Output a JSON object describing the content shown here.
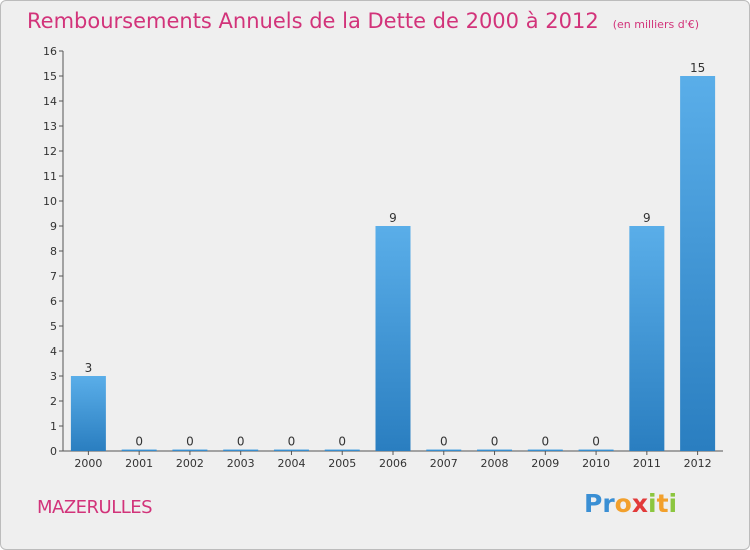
{
  "header": {
    "title": "Remboursements Annuels de la Dette de 2000 à 2012",
    "unit": "(en milliers d'€)"
  },
  "footer": {
    "commune": "MAZERULLES",
    "logo_text": "Proxiti"
  },
  "colors": {
    "accent": "#d2337a",
    "bar_light": "#5aaee9",
    "bar_dark": "#2a7ec0"
  },
  "chart_data": {
    "type": "bar",
    "title": "Remboursements Annuels de la Dette de 2000 à 2012",
    "subtitle": "(en milliers d'€)",
    "categories": [
      "2000",
      "2001",
      "2002",
      "2003",
      "2004",
      "2005",
      "2006",
      "2007",
      "2008",
      "2009",
      "2010",
      "2011",
      "2012"
    ],
    "values": [
      3,
      0,
      0,
      0,
      0,
      0,
      9,
      0,
      0,
      0,
      0,
      9,
      15
    ],
    "data_labels": [
      "3",
      "0",
      "0",
      "0",
      "0",
      "0",
      "9",
      "0",
      "0",
      "0",
      "0",
      "9",
      "15"
    ],
    "yticks": [
      "0",
      "1",
      "2",
      "3",
      "4",
      "5",
      "6",
      "7",
      "8",
      "9",
      "10",
      "11",
      "12",
      "13",
      "14",
      "15",
      "16"
    ],
    "ylim": [
      0,
      16
    ],
    "xlabel": "",
    "ylabel": "",
    "grid": false,
    "legend": "none"
  }
}
